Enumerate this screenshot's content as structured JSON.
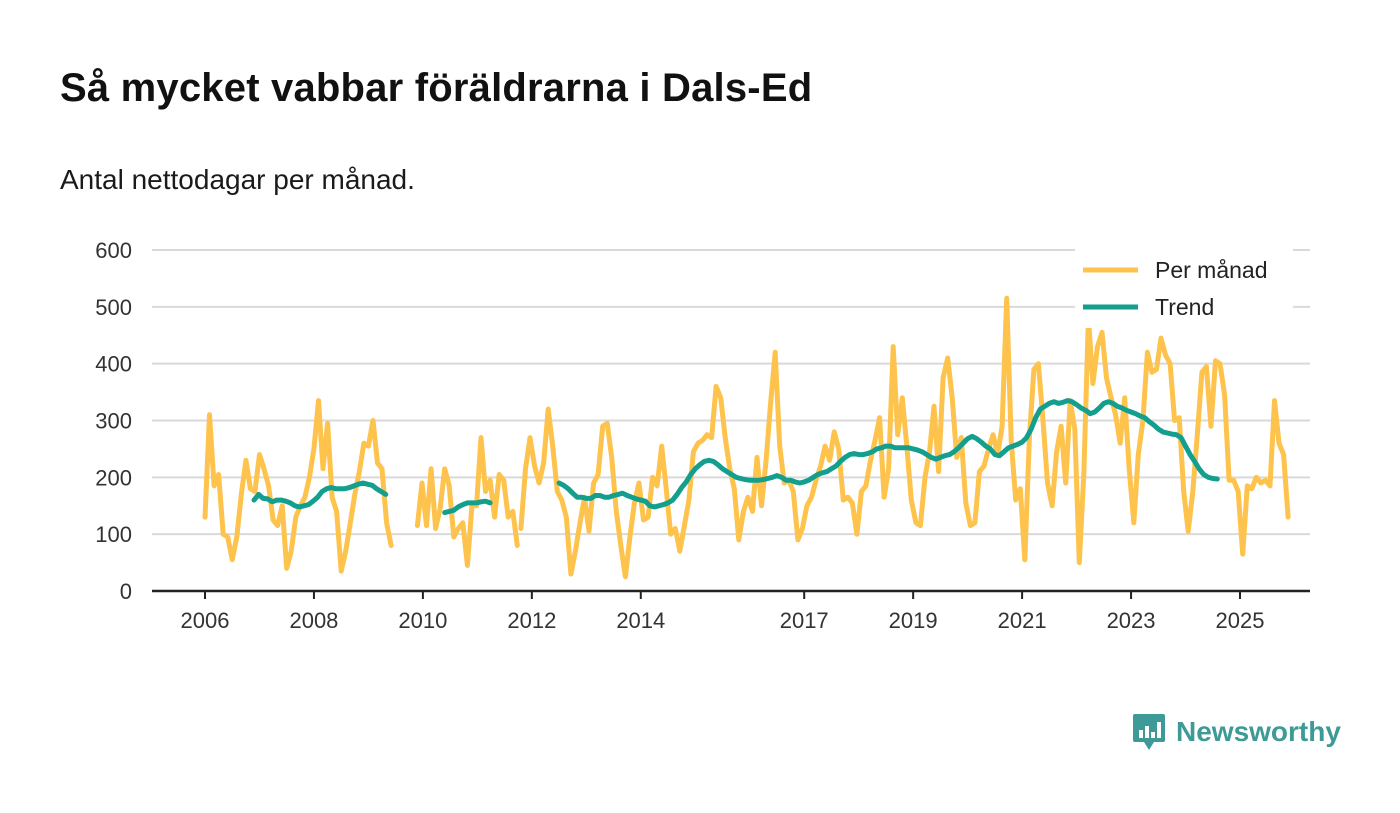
{
  "title": "Så mycket vabbar föräldrarna i Dals-Ed",
  "subtitle": "Antal nettodagar per månad.",
  "brand": {
    "name": "Newsworthy",
    "icon": "newsworthy-logo-icon"
  },
  "colors": {
    "monthly": "#fec34c",
    "trend": "#139e8e",
    "grid": "#d9d9d9",
    "axis": "#222222",
    "brand": "#3d9a96"
  },
  "chart_data": {
    "type": "line",
    "title": "Så mycket vabbar föräldrarna i Dals-Ed",
    "subtitle": "Antal nettodagar per månad.",
    "xlabel": "",
    "ylabel": "",
    "ylim": [
      0,
      600
    ],
    "xlim": [
      2005.2,
      2025.8
    ],
    "yticks": [
      0,
      100,
      200,
      300,
      400,
      500,
      600
    ],
    "xticks": [
      2006,
      2008,
      2010,
      2012,
      2014,
      2017,
      2019,
      2021,
      2023,
      2025
    ],
    "legend_position": "top-right",
    "legend": [
      "Per månad",
      "Trend"
    ],
    "series": [
      {
        "name": "Per månad",
        "color": "#fec34c",
        "segments": [
          {
            "start": 2006.0,
            "values": [
              130,
              310,
              185,
              205,
              100,
              95,
              55,
              95,
              170,
              230,
              180,
              175,
              240,
              215,
              185,
              125,
              115,
              150,
              40,
              70,
              130,
              150,
              165,
              200,
              250,
              335,
              215,
              295,
              165,
              140,
              35,
              70,
              120,
              170,
              210,
              260,
              255,
              300,
              225,
              215,
              120,
              80
            ]
          },
          {
            "start": 2009.9,
            "values": [
              115,
              190,
              115,
              215,
              110,
              145,
              215,
              185,
              95,
              110,
              120,
              45,
              150,
              150,
              270,
              175,
              195,
              130,
              205,
              195,
              130,
              140,
              80
            ]
          },
          {
            "start": 2011.8,
            "values": [
              110,
              215,
              270,
              220,
              190,
              225,
              320,
              255,
              175,
              160,
              130,
              30,
              70,
              120,
              165,
              105,
              190,
              205,
              290,
              295,
              235,
              140,
              80,
              25,
              95,
              155,
              190,
              125,
              130,
              200,
              185,
              255,
              180,
              100,
              110,
              70,
              115,
              160,
              245,
              260,
              265,
              275,
              270,
              360,
              340,
              270,
              215,
              180,
              90,
              140,
              165,
              140,
              235,
              150,
              230,
              330,
              420,
              255,
              190,
              195,
              175,
              90,
              110,
              150,
              165,
              195,
              220,
              255,
              230,
              280,
              250,
              160,
              165,
              155,
              100,
              175,
              185,
              230,
              265,
              305,
              165,
              215,
              430,
              275,
              340,
              255,
              160,
              120,
              115,
              200,
              245,
              325,
              210,
              375,
              410,
              340,
              235,
              270,
              155,
              115,
              120,
              210,
              220,
              250,
              275,
              240,
              290,
              515,
              265,
              160,
              180,
              55,
              270,
              390,
              400,
              300,
              190,
              150,
              245,
              290,
              190,
              335,
              285,
              50,
              205,
              480,
              365,
              430,
              455,
              375,
              340,
              310,
              260,
              340,
              215,
              120,
              240,
              300,
              420,
              385,
              390,
              445,
              415,
              400,
              300,
              305,
              175,
              105,
              175,
              275,
              385,
              395,
              290,
              405,
              400,
              345,
              195,
              195,
              175,
              65,
              185,
              180,
              200,
              190,
              195,
              185,
              335,
              260,
              240,
              130
            ]
          }
        ]
      },
      {
        "name": "Trend",
        "color": "#139e8e",
        "segments": [
          {
            "start": 2006.9,
            "values": [
              160,
              170,
              163,
              162,
              157,
              160,
              160,
              158,
              155,
              150,
              148,
              150,
              152,
              158,
              165,
              175,
              180,
              182,
              180,
              180,
              180,
              182,
              185,
              188,
              190,
              188,
              186,
              180,
              175,
              170
            ]
          },
          {
            "start": 2010.4,
            "values": [
              138,
              140,
              142,
              148,
              152,
              155,
              155,
              155,
              157,
              158,
              155
            ]
          },
          {
            "start": 2012.5,
            "values": [
              190,
              186,
              180,
              172,
              165,
              165,
              163,
              163,
              168,
              168,
              165,
              165,
              168,
              170,
              172,
              168,
              165,
              162,
              160,
              158,
              150,
              148,
              150,
              152,
              155,
              160,
              170,
              182,
              192,
              205,
              215,
              222,
              228,
              230,
              228,
              222,
              215,
              210,
              205,
              200,
              198,
              196,
              195,
              195,
              195,
              196,
              198,
              200,
              203,
              200,
              195,
              195,
              192,
              190,
              192,
              195,
              200,
              205,
              208,
              210,
              215,
              220,
              228,
              235,
              240,
              242,
              240,
              240,
              242,
              245,
              250,
              252,
              255,
              255,
              252,
              252,
              252,
              252,
              250,
              248,
              245,
              240,
              235,
              232,
              235,
              238,
              240,
              245,
              252,
              260,
              268,
              272,
              268,
              262,
              255,
              250,
              240,
              238,
              245,
              252,
              255,
              258,
              262,
              270,
              285,
              305,
              320,
              325,
              330,
              333,
              330,
              332,
              335,
              333,
              328,
              322,
              318,
              312,
              315,
              322,
              330,
              333,
              330,
              325,
              322,
              318,
              315,
              312,
              308,
              305,
              298,
              292,
              285,
              280,
              278,
              276,
              275,
              270,
              255,
              240,
              228,
              215,
              205,
              200,
              198,
              197
            ]
          }
        ]
      }
    ]
  }
}
